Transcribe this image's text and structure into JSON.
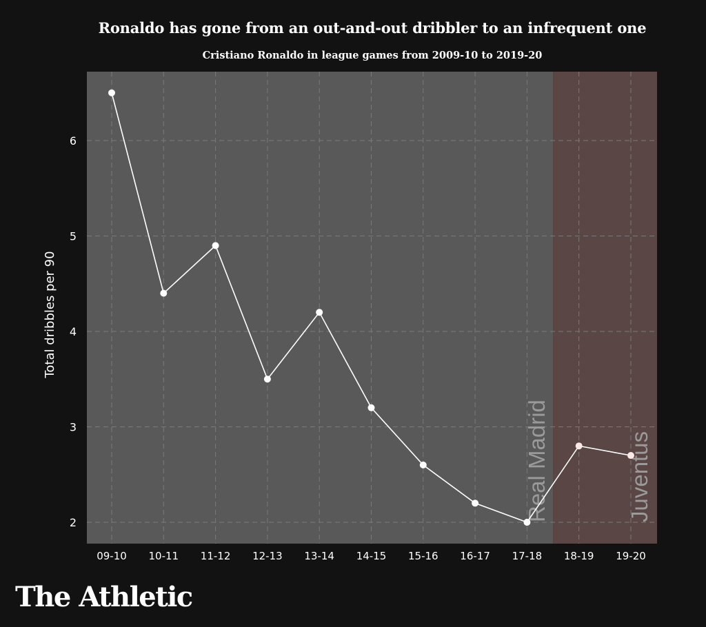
{
  "title": "Ronaldo has gone from an out-and-out dribbler to an infrequent one",
  "subtitle": "Cristiano Ronaldo in league games from 2009-10 to 2019-20",
  "brand": "The Athletic",
  "colors": {
    "background": "#121212",
    "real_madrid_band": "#595959",
    "juventus_band": "#5a4644",
    "line": "#ffffff",
    "juventus_point": "#fbe9e9",
    "grid": "#7a7a7a",
    "band_label": "#9a9a9a"
  },
  "chart_data": {
    "type": "line",
    "categories": [
      "09-10",
      "10-11",
      "11-12",
      "12-13",
      "13-14",
      "14-15",
      "15-16",
      "16-17",
      "17-18",
      "18-19",
      "19-20"
    ],
    "values": [
      6.5,
      4.4,
      4.9,
      3.5,
      4.2,
      3.2,
      2.6,
      2.2,
      2.0,
      2.8,
      2.7
    ],
    "ylabel": "Total dribbles per 90",
    "xlabel": "",
    "ylim": [
      1.8,
      6.75
    ],
    "yticks": [
      2,
      3,
      4,
      5,
      6
    ],
    "grid": true,
    "bands": [
      {
        "label": "Real Madrid",
        "from": "09-10",
        "to": "17-18"
      },
      {
        "label": "Juventus",
        "from": "18-19",
        "to": "19-20"
      }
    ]
  }
}
